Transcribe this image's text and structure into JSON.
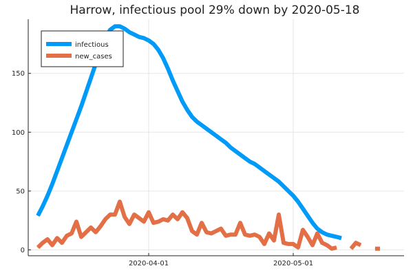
{
  "chart_data": {
    "type": "line",
    "title": "Harrow, infectious pool 29% down by 2020-05-18",
    "xlabel": "",
    "ylabel": "",
    "x_start": "2020-03-09",
    "x_range": [
      "2020-03-07",
      "2020-05-24"
    ],
    "ylim": [
      -5,
      196
    ],
    "grid": true,
    "legend": "top-left",
    "y_ticks": [
      0,
      50,
      100,
      150
    ],
    "x_ticks": [
      {
        "date": "2020-04-01",
        "label": "2020-04-01"
      },
      {
        "date": "2020-05-01",
        "label": "2020-05-01"
      }
    ],
    "series": [
      {
        "name": "infectious",
        "color": "#009af9",
        "values": [
          29,
          37,
          46,
          56,
          67,
          78,
          89,
          100,
          111,
          122,
          134,
          146,
          158,
          170,
          180,
          187,
          190,
          190,
          188,
          185,
          183,
          181,
          180,
          178,
          175,
          170,
          163,
          154,
          144,
          135,
          126,
          119,
          113,
          109,
          106,
          103,
          100,
          97,
          94,
          91,
          87,
          84,
          81,
          78,
          75,
          73,
          70,
          67,
          64,
          61,
          58,
          54,
          50,
          46,
          41,
          35,
          29,
          23,
          18,
          15,
          13,
          12,
          11,
          10
        ]
      },
      {
        "name": "new_cases",
        "color": "#e26f46",
        "values": [
          2,
          6,
          9,
          4,
          10,
          6,
          12,
          14,
          24,
          11,
          15,
          19,
          15,
          20,
          26,
          30,
          30,
          41,
          28,
          22,
          30,
          27,
          24,
          32,
          23,
          24,
          26,
          25,
          30,
          26,
          32,
          27,
          16,
          13,
          23,
          15,
          14,
          16,
          18,
          12,
          13,
          13,
          23,
          13,
          12,
          13,
          11,
          5,
          14,
          8,
          30,
          6,
          5,
          5,
          2,
          17,
          11,
          4,
          14,
          6,
          4,
          1,
          2,
          null,
          null,
          1,
          6,
          4,
          null,
          null,
          1,
          1
        ]
      }
    ]
  }
}
